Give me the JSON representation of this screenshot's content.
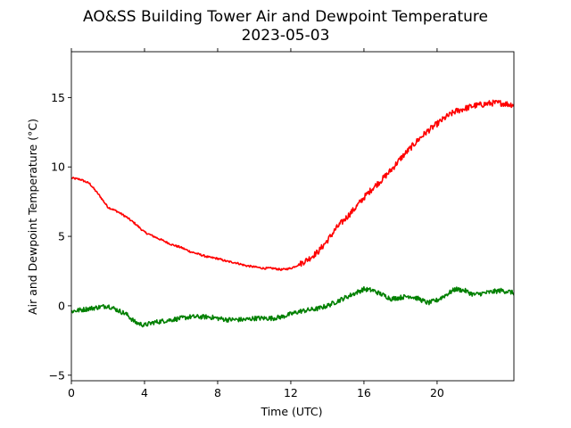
{
  "chart_data": {
    "type": "line",
    "title": "AO&SS Building Tower Air and Dewpoint Temperature",
    "subtitle": "2023-05-03",
    "xlabel": "Time (UTC)",
    "ylabel": "Air and Dewpoint Temperature (°C)",
    "xlim": [
      0,
      24.2
    ],
    "ylim": [
      -5.4,
      18.3
    ],
    "xticks": [
      0,
      4,
      8,
      12,
      16,
      20
    ],
    "yticks": [
      -5,
      0,
      5,
      10,
      15
    ],
    "xtick_labels": [
      "0",
      "4",
      "8",
      "12",
      "16",
      "20"
    ],
    "ytick_labels": [
      "−5",
      "0",
      "5",
      "10",
      "15"
    ],
    "grid": false,
    "legend": null,
    "series": [
      {
        "color": "#ff0000",
        "x": [
          0,
          0.5,
          1,
          1.5,
          2,
          2.5,
          3,
          3.5,
          4,
          4.5,
          5,
          5.5,
          6,
          6.5,
          7,
          7.5,
          8,
          8.5,
          9,
          9.5,
          10,
          10.5,
          11,
          11.5,
          12,
          12.5,
          13,
          13.5,
          14,
          14.5,
          15,
          15.5,
          16,
          16.5,
          17,
          17.5,
          18,
          18.5,
          19,
          19.5,
          20,
          20.5,
          21,
          21.5,
          22,
          22.5,
          23,
          23.5,
          24,
          24.2
        ],
        "values": [
          9.2,
          9.1,
          8.8,
          8.0,
          7.1,
          6.8,
          6.4,
          5.9,
          5.3,
          5.0,
          4.7,
          4.4,
          4.2,
          3.9,
          3.7,
          3.5,
          3.4,
          3.2,
          3.1,
          2.9,
          2.8,
          2.7,
          2.7,
          2.6,
          2.7,
          3.0,
          3.4,
          3.9,
          4.7,
          5.6,
          6.3,
          7.0,
          7.8,
          8.5,
          9.1,
          9.8,
          10.6,
          11.3,
          12.0,
          12.6,
          13.1,
          13.6,
          14.0,
          14.2,
          14.4,
          14.5,
          14.6,
          14.6,
          14.5,
          14.5
        ]
      },
      {
        "color": "#008000",
        "x": [
          0,
          0.5,
          1,
          1.5,
          2,
          2.5,
          3,
          3.5,
          4,
          4.5,
          5,
          5.5,
          6,
          6.5,
          7,
          7.5,
          8,
          8.5,
          9,
          9.5,
          10,
          10.5,
          11,
          11.5,
          12,
          12.5,
          13,
          13.5,
          14,
          14.5,
          15,
          15.5,
          16,
          16.5,
          17,
          17.5,
          18,
          18.5,
          19,
          19.5,
          20,
          20.5,
          21,
          21.5,
          22,
          22.5,
          23,
          23.5,
          24,
          24.2
        ],
        "values": [
          -0.4,
          -0.3,
          -0.2,
          -0.1,
          0.0,
          -0.3,
          -0.6,
          -1.2,
          -1.4,
          -1.2,
          -1.1,
          -1.0,
          -0.9,
          -0.8,
          -0.8,
          -0.8,
          -0.9,
          -1.0,
          -1.0,
          -1.0,
          -0.9,
          -0.9,
          -0.9,
          -0.8,
          -0.6,
          -0.4,
          -0.3,
          -0.2,
          0.0,
          0.3,
          0.6,
          0.9,
          1.2,
          1.1,
          0.8,
          0.5,
          0.6,
          0.7,
          0.5,
          0.2,
          0.4,
          0.8,
          1.2,
          1.1,
          0.8,
          0.9,
          1.0,
          1.1,
          1.0,
          0.9
        ]
      }
    ]
  }
}
